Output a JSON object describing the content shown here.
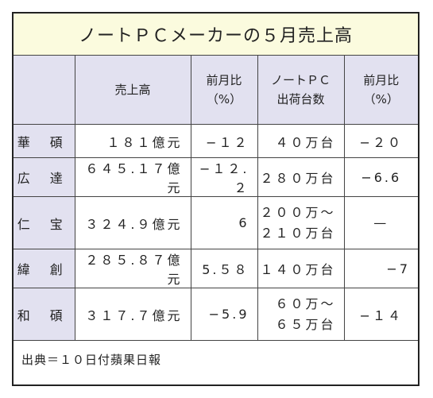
{
  "title": "ノートＰＣメーカーの５月売上高",
  "headers": {
    "blank": "",
    "revenue": "売上高",
    "mom1_line1": "前月比",
    "mom1_line2": "（%）",
    "shipments_line1": "ノートＰＣ",
    "shipments_line2": "出荷台数",
    "mom2_line1": "前月比",
    "mom2_line2": "（%）"
  },
  "rows": [
    {
      "company": "華 碩",
      "revenue": "１８１億元",
      "rev_mom": "−１２",
      "ship_line1": "４０万台",
      "ship_line2": "",
      "ship_mom": "−２０"
    },
    {
      "company": "広 達",
      "revenue": "６４５.１７億元",
      "rev_mom": "−１２.２",
      "ship_line1": "２８０万台",
      "ship_line2": "",
      "ship_mom": "−6.6"
    },
    {
      "company": "仁 宝",
      "revenue": "３２４.９億元",
      "rev_mom": "6",
      "ship_line1": "２００万〜",
      "ship_line2": "２１０万台",
      "ship_mom": "—"
    },
    {
      "company": "緯 創",
      "revenue": "２８５.８７億元",
      "rev_mom": "5.５８",
      "ship_line1": "１４０万台",
      "ship_line2": "",
      "ship_mom": "−7"
    },
    {
      "company": "和 碩",
      "revenue": "３１７.７億元",
      "rev_mom": "−5.9",
      "ship_line1": "６０万〜",
      "ship_line2": "６５万台",
      "ship_mom": "−１４"
    }
  ],
  "source": "出典＝１０日付蘋果日報"
}
